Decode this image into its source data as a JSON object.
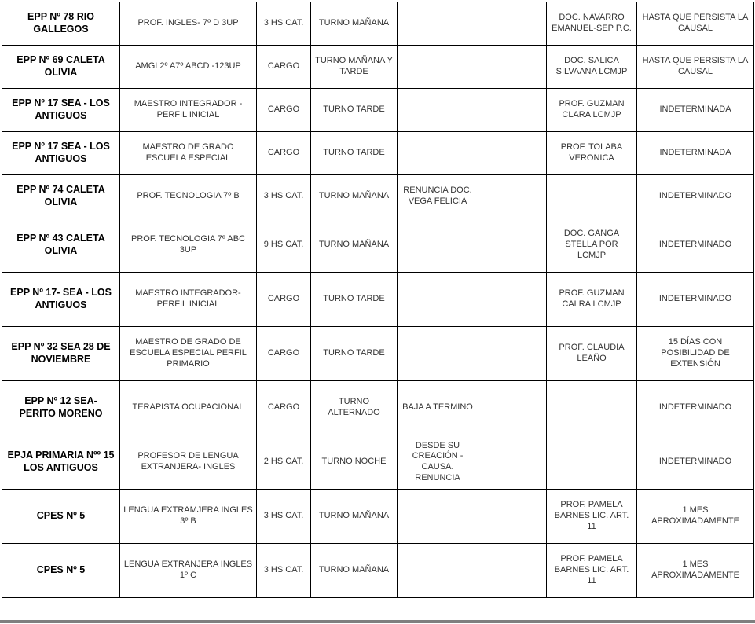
{
  "table": {
    "rows": [
      [
        "EPP Nº 78 RIO GALLEGOS",
        "PROF. INGLES- 7º D 3UP",
        "3 HS CAT.",
        "TURNO MAÑANA",
        "",
        "",
        "DOC. NAVARRO EMANUEL-SEP P.C.",
        "HASTA QUE PERSISTA LA CAUSAL"
      ],
      [
        "EPP Nº 69 CALETA OLIVIA",
        "AMGI 2º A7º ABCD -123UP",
        "CARGO",
        "TURNO MAÑANA Y TARDE",
        "",
        "",
        "DOC. SALICA SILVAANA LCMJP",
        "HASTA QUE PERSISTA LA CAUSAL"
      ],
      [
        "EPP Nº 17 SEA - LOS ANTIGUOS",
        "MAESTRO INTEGRADOR - PERFIL INICIAL",
        "CARGO",
        "TURNO TARDE",
        "",
        "",
        "PROF. GUZMAN CLARA  LCMJP",
        "INDETERMINADA"
      ],
      [
        "EPP Nº 17 SEA - LOS ANTIGUOS",
        "MAESTRO DE GRADO ESCUELA ESPECIAL",
        "CARGO",
        "TURNO TARDE",
        "",
        "",
        "PROF. TOLABA VERONICA",
        "INDETERMINADA"
      ],
      [
        "EPP Nº 74 CALETA OLIVIA",
        "PROF. TECNOLOGIA 7º B",
        "3 HS CAT.",
        "TURNO MAÑANA",
        "RENUNCIA DOC. VEGA FELICIA",
        "",
        "",
        "INDETERMINADO"
      ],
      [
        "EPP Nº 43 CALETA OLIVIA",
        "PROF. TECNOLOGIA 7º ABC 3UP",
        "9 HS CAT.",
        "TURNO MAÑANA",
        "",
        "",
        "DOC. GANGA STELLA POR LCMJP",
        "INDETERMINADO"
      ],
      [
        "EPP Nº 17- SEA - LOS ANTIGUOS",
        "MAESTRO INTEGRADOR- PERFIL INICIAL",
        "CARGO",
        "TURNO TARDE",
        "",
        "",
        "PROF. GUZMAN CALRA  LCMJP",
        "INDETERMINADO"
      ],
      [
        "EPP Nº 32 SEA 28 DE NOVIEMBRE",
        "MAESTRO DE GRADO DE ESCUELA ESPECIAL PERFIL PRIMARIO",
        "CARGO",
        "TURNO TARDE",
        "",
        "",
        "PROF. CLAUDIA LEAÑO",
        "15 DÍAS CON POSIBILIDAD DE EXTENSIÓN"
      ],
      [
        "EPP Nº 12 SEA- PERITO MORENO",
        "TERAPISTA OCUPACIONAL",
        "CARGO",
        "TURNO ALTERNADO",
        "BAJA A TERMINO",
        "",
        "",
        "INDETERMINADO"
      ],
      [
        "EPJA PRIMARIA Nºº 15 LOS ANTIGUOS",
        "PROFESOR DE LENGUA EXTRANJERA- INGLES",
        "2 HS CAT.",
        "TURNO NOCHE",
        "DESDE SU CREACIÓN - CAUSA. RENUNCIA",
        "",
        "",
        "INDETERMINADO"
      ],
      [
        "CPES Nº 5",
        "LENGUA EXTRAMJERA INGLES 3º B",
        "3 HS CAT.",
        "TURNO MAÑANA",
        "",
        "",
        "PROF. PAMELA BARNES LIC. ART. 11",
        "1 MES APROXIMADAMENTE"
      ],
      [
        "CPES Nº 5",
        "LENGUA EXTRANJERA INGLES 1º C",
        "3 HS CAT.",
        "TURNO MAÑANA",
        "",
        "",
        "PROF. PAMELA BARNES LIC. ART. 11",
        "1 MES APROXIMADAMENTE"
      ]
    ]
  }
}
